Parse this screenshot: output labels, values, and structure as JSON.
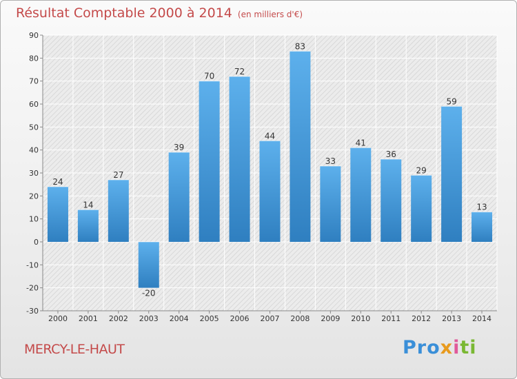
{
  "title": "Résultat Comptable 2000 à 2014",
  "subtitle": "(en milliers d'€)",
  "commune": "MERCY-LE-HAUT",
  "logo": {
    "part1": "Pro",
    "part2": "x",
    "part3": "i",
    "part4": "ti"
  },
  "colors": {
    "title": "#c44a4a",
    "bar_top": "#5db0ec",
    "bar_bottom": "#2f7fc0"
  },
  "chart_data": {
    "type": "bar",
    "title": "Résultat Comptable 2000 à 2014",
    "ylabel": "",
    "xlabel": "",
    "categories": [
      "2000",
      "2001",
      "2002",
      "2003",
      "2004",
      "2005",
      "2006",
      "2007",
      "2008",
      "2009",
      "2010",
      "2011",
      "2012",
      "2013",
      "2014"
    ],
    "values": [
      24,
      14,
      27,
      -20,
      39,
      70,
      72,
      44,
      83,
      33,
      41,
      36,
      29,
      59,
      13
    ],
    "ylim": [
      -30,
      90
    ],
    "yticks": [
      -30,
      -20,
      -10,
      0,
      10,
      20,
      30,
      40,
      50,
      60,
      70,
      80,
      90
    ],
    "grid": true
  }
}
